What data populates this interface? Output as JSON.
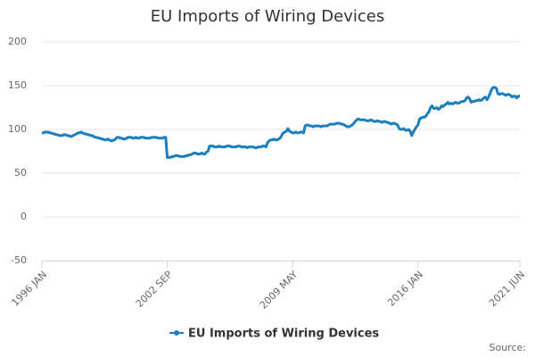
{
  "chart_data": {
    "type": "line",
    "title": "EU Imports of Wiring Devices",
    "categories": [
      "1996 JAN",
      null,
      null,
      null,
      null,
      null,
      null,
      null,
      null,
      null,
      null,
      null,
      null,
      null,
      null,
      null,
      null,
      null,
      null,
      null,
      null,
      null,
      null,
      null,
      null,
      null,
      null,
      null,
      null,
      null,
      null,
      null,
      null,
      null,
      null,
      null,
      null,
      null,
      null,
      null,
      null,
      null,
      null,
      null,
      null,
      null,
      null,
      null,
      null,
      null,
      null,
      null,
      null,
      null,
      null,
      null,
      null,
      null,
      null,
      null,
      null,
      null,
      null,
      null,
      null,
      null,
      null,
      null,
      null,
      null,
      null,
      null,
      null,
      null,
      null,
      null,
      null,
      null,
      null,
      null,
      "2002 SEP",
      null,
      null,
      null,
      null,
      null,
      null,
      null,
      null,
      null,
      null,
      null,
      null,
      null,
      null,
      null,
      null,
      null,
      null,
      null,
      null,
      null,
      null,
      null,
      null,
      null,
      null,
      null,
      null,
      null,
      null,
      null,
      null,
      null,
      null,
      null,
      null,
      null,
      null,
      null,
      null,
      null,
      null,
      null,
      null,
      null,
      null,
      null,
      null,
      null,
      null,
      null,
      null,
      null,
      null,
      null,
      null,
      null,
      null,
      null,
      null,
      null,
      null,
      null,
      null,
      null,
      null,
      null,
      null,
      null,
      null,
      null,
      null,
      null,
      null,
      null,
      null,
      null,
      null,
      null,
      "2009 MAY",
      null,
      null,
      null,
      null,
      null,
      null,
      null,
      null,
      null,
      null,
      null,
      null,
      null,
      null,
      null,
      null,
      null,
      null,
      null,
      null,
      null,
      null,
      null,
      null,
      null,
      null,
      null,
      null,
      null,
      null,
      null,
      null,
      null,
      null,
      null,
      null,
      null,
      null,
      null,
      null,
      null,
      null,
      null,
      null,
      null,
      null,
      null,
      null,
      null,
      null,
      null,
      null,
      null,
      null,
      null,
      null,
      null,
      null,
      null,
      null,
      null,
      null,
      null,
      null,
      null,
      null,
      null,
      null,
      null,
      null,
      null,
      null,
      null,
      null,
      null,
      null,
      null,
      null,
      null,
      "2016 JAN",
      null,
      null,
      null,
      null,
      null,
      null,
      null,
      null,
      null,
      null,
      null,
      null,
      null,
      null,
      null,
      null,
      null,
      null,
      null,
      null,
      null,
      null,
      null,
      null,
      null,
      null,
      null,
      null,
      null,
      null,
      null,
      null,
      null,
      null,
      null,
      null,
      null,
      null,
      null,
      null,
      null,
      null,
      null,
      null,
      null,
      null,
      null,
      null,
      null,
      null,
      null,
      null,
      null,
      null,
      null,
      null,
      null,
      null,
      null,
      null,
      null,
      null,
      null,
      null,
      "2021 JUN"
    ],
    "series": [
      {
        "name": "EU Imports of Wiring Devices",
        "color": "#1a7ebf",
        "values": [
          96,
          96,
          97,
          97,
          97,
          96,
          96,
          95,
          95,
          94,
          94,
          93,
          93,
          93,
          94,
          94,
          93,
          93,
          92,
          92,
          93,
          94,
          95,
          96,
          96,
          97,
          96,
          95,
          95,
          94,
          94,
          93,
          93,
          92,
          91,
          91,
          90,
          90,
          89,
          89,
          88,
          88,
          89,
          88,
          87,
          87,
          88,
          89,
          91,
          91,
          90,
          90,
          89,
          89,
          90,
          91,
          91,
          91,
          90,
          90,
          91,
          90,
          90,
          91,
          91,
          91,
          90,
          90,
          90,
          90,
          91,
          91,
          91,
          91,
          90,
          90,
          90,
          90,
          91,
          91,
          68,
          68,
          68,
          69,
          69,
          70,
          70,
          70,
          69,
          69,
          69,
          69,
          70,
          70,
          71,
          71,
          72,
          73,
          73,
          72,
          72,
          72,
          73,
          72,
          72,
          74,
          75,
          81,
          81,
          81,
          80,
          80,
          80,
          81,
          80,
          80,
          80,
          80,
          81,
          81,
          81,
          80,
          80,
          80,
          80,
          81,
          81,
          80,
          80,
          80,
          80,
          79,
          80,
          80,
          80,
          80,
          79,
          79,
          80,
          80,
          80,
          81,
          81,
          80,
          85,
          87,
          88,
          88,
          89,
          88,
          88,
          89,
          90,
          93,
          96,
          97,
          98,
          101,
          98,
          97,
          96,
          96,
          97,
          96,
          96,
          97,
          97,
          96,
          104,
          105,
          105,
          104,
          104,
          103,
          104,
          104,
          104,
          104,
          103,
          104,
          104,
          104,
          104,
          105,
          106,
          106,
          106,
          106,
          107,
          107,
          107,
          106,
          106,
          105,
          104,
          103,
          103,
          104,
          105,
          107,
          109,
          111,
          112,
          111,
          111,
          111,
          111,
          110,
          110,
          110,
          111,
          110,
          109,
          109,
          110,
          109,
          109,
          108,
          109,
          109,
          108,
          108,
          107,
          106,
          107,
          107,
          106,
          105,
          101,
          100,
          100,
          101,
          99,
          99,
          100,
          98,
          93,
          97,
          100,
          103,
          105,
          112,
          113,
          114,
          114,
          115,
          118,
          120,
          125,
          127,
          124,
          124,
          125,
          123,
          124,
          127,
          126,
          128,
          129,
          131,
          129,
          130,
          129,
          130,
          131,
          130,
          130,
          131,
          132,
          132,
          133,
          136,
          137,
          135,
          131,
          132,
          132,
          133,
          133,
          134,
          133,
          134,
          136,
          137,
          134,
          137,
          141,
          146,
          148,
          148,
          147,
          141,
          140,
          141,
          141,
          140,
          139,
          140,
          140,
          139,
          137,
          138,
          138,
          136,
          138,
          138
        ]
      }
    ],
    "ylim": [
      -50,
      200
    ],
    "yticks": [
      -50,
      0,
      50,
      100,
      150,
      200
    ],
    "grid": true,
    "legend": "bottom",
    "source": "Source:"
  }
}
